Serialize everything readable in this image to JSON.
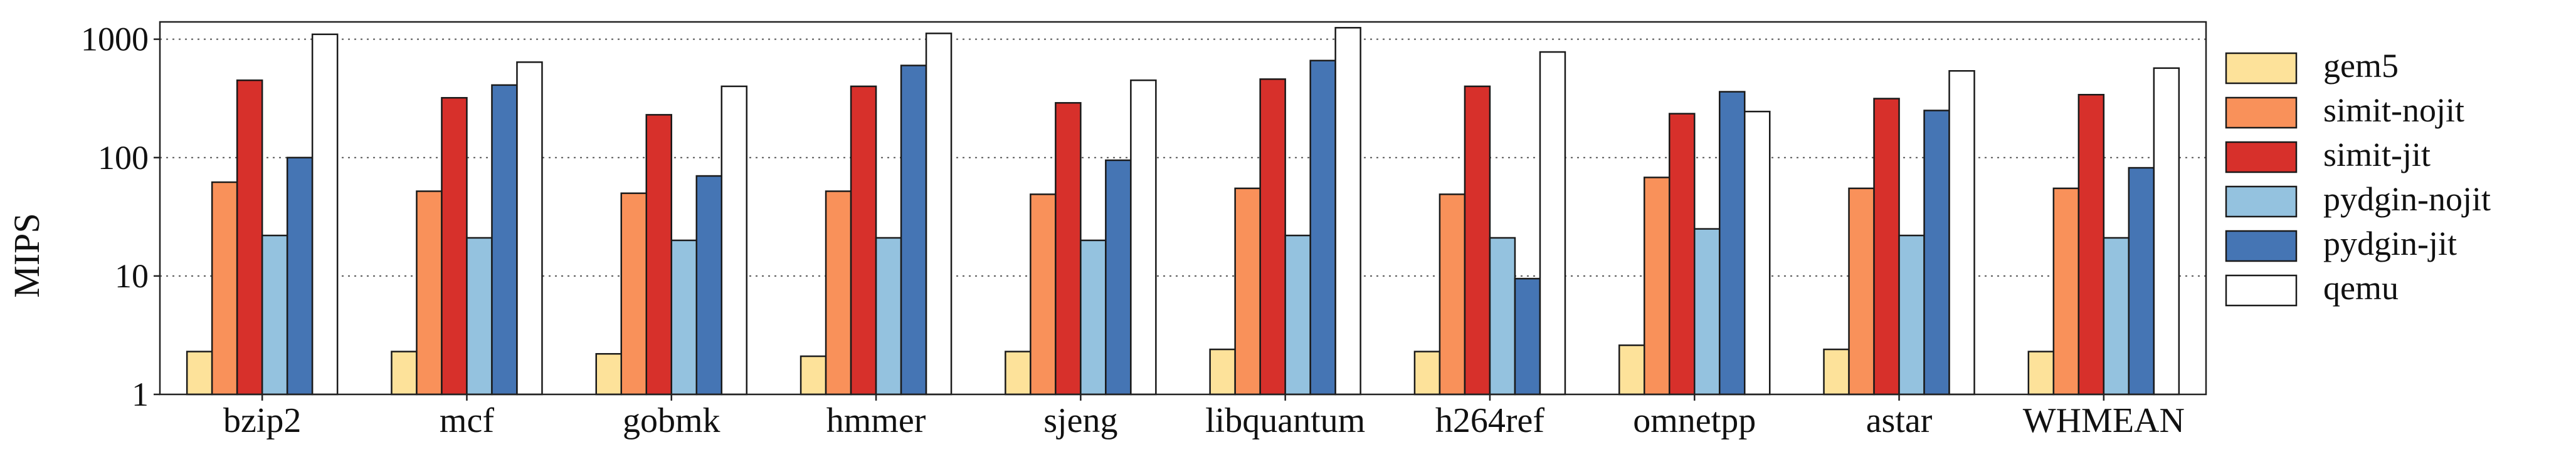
{
  "chart_data": {
    "type": "bar",
    "ylabel": "MIPS",
    "xlabel": "",
    "yscale": "log",
    "ylim": [
      1,
      1400
    ],
    "yticks": [
      1,
      10,
      100,
      1000
    ],
    "ytick_labels": [
      "1",
      "10",
      "100",
      "1000"
    ],
    "grid": "horizontal-dotted",
    "legend_position": "right",
    "categories": [
      "bzip2",
      "mcf",
      "gobmk",
      "hmmer",
      "sjeng",
      "libquantum",
      "h264ref",
      "omnetpp",
      "astar",
      "WHMEAN"
    ],
    "series": [
      {
        "name": "gem5",
        "color": "#fde29a",
        "values": [
          2.3,
          2.3,
          2.2,
          2.1,
          2.3,
          2.4,
          2.3,
          2.6,
          2.4,
          2.3
        ]
      },
      {
        "name": "simit-nojit",
        "color": "#f9915a",
        "values": [
          62,
          52,
          50,
          52,
          49,
          55,
          49,
          68,
          55,
          55
        ]
      },
      {
        "name": "simit-jit",
        "color": "#d7302b",
        "values": [
          450,
          320,
          230,
          400,
          290,
          460,
          400,
          235,
          315,
          340
        ]
      },
      {
        "name": "pydgin-nojit",
        "color": "#94c2df",
        "values": [
          22,
          21,
          20,
          21,
          20,
          22,
          21,
          25,
          22,
          21
        ]
      },
      {
        "name": "pydgin-jit",
        "color": "#4575b4",
        "values": [
          100,
          410,
          70,
          600,
          95,
          660,
          9.5,
          360,
          250,
          82
        ]
      },
      {
        "name": "qemu",
        "color": "#ffffff",
        "values": [
          1100,
          640,
          400,
          1120,
          450,
          1250,
          780,
          245,
          540,
          570
        ]
      }
    ]
  }
}
